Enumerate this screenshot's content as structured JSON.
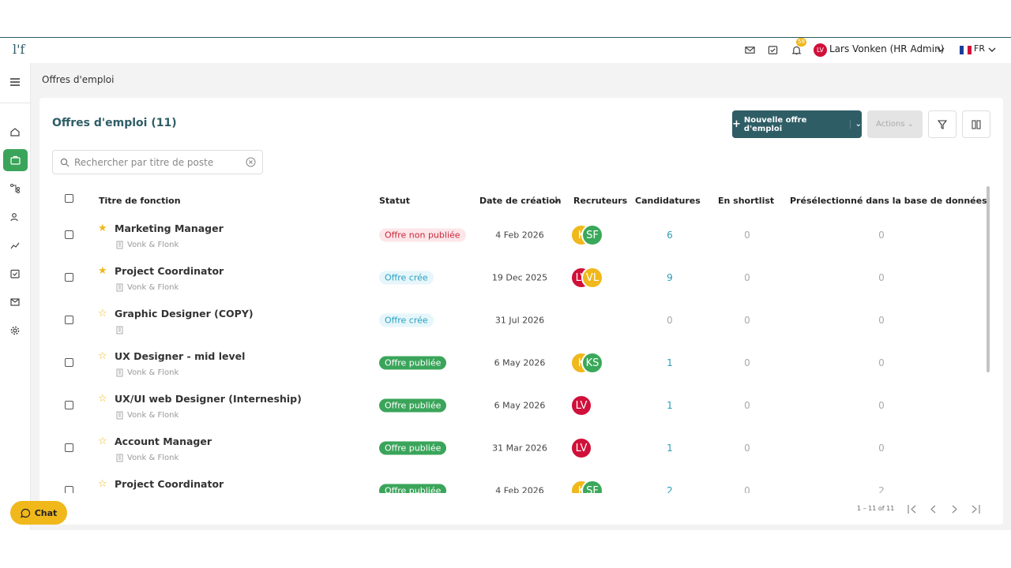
{
  "header": {
    "logo": "l'f",
    "notification_count": "59",
    "user_initials": "LV",
    "user_name": "Lars Vonken (HR Admin)",
    "language": "FR"
  },
  "breadcrumb": "Offres d'emploi",
  "page": {
    "title": "Offres d'emploi (11)",
    "new_button": "Nouvelle offre d'emploi",
    "actions_button": "Actions",
    "search_placeholder": "Rechercher par titre de poste"
  },
  "table": {
    "columns": [
      "Titre de fonction",
      "Statut",
      "Date de création",
      "Recruteurs",
      "Candidatures",
      "En shortlist",
      "Présélectionné dans la base de données"
    ],
    "rows": [
      {
        "title": "Marketing Manager",
        "company": "Vonk & Flonk",
        "starred": true,
        "status": "Offre non publiée",
        "status_bg": "#fde6e9",
        "status_fg": "#c8283a",
        "date": "4 Feb 2026",
        "recruiters": [
          {
            "initials": "K",
            "color": "#f0b81b"
          },
          {
            "initials": "SF",
            "color": "#3aa85a"
          }
        ],
        "candidatures": 6,
        "shortlist": 0,
        "preselected": 0
      },
      {
        "title": "Project Coordinator",
        "company": "Vonk & Flonk",
        "starred": true,
        "status": "Offre crée",
        "status_bg": "#e6f6fb",
        "status_fg": "#2aa0c0",
        "date": "19 Dec 2025",
        "recruiters": [
          {
            "initials": "LV",
            "color": "#d0103a"
          },
          {
            "initials": "VL",
            "color": "#f0b81b"
          }
        ],
        "candidatures": 9,
        "shortlist": 0,
        "preselected": 0
      },
      {
        "title": "Graphic Designer (COPY)",
        "starred": false,
        "status": "Offre crée",
        "status_bg": "#e6f6fb",
        "status_fg": "#2aa0c0",
        "date": "31 Jul 2026",
        "recruiters": [],
        "candidatures": 0,
        "shortlist": 0,
        "preselected": 0
      },
      {
        "title": "UX Designer - mid level",
        "company": "Vonk & Flonk",
        "starred": false,
        "status": "Offre publiée",
        "status_bg": "#3aa55a",
        "status_fg": "#ffffff",
        "date": "6 May 2026",
        "recruiters": [
          {
            "initials": "K",
            "color": "#f0b81b"
          },
          {
            "initials": "KS",
            "color": "#3aa85a"
          }
        ],
        "candidatures": 1,
        "shortlist": 0,
        "preselected": 0
      },
      {
        "title": "UX/UI web Designer (Interneship)",
        "company": "Vonk & Flonk",
        "starred": false,
        "status": "Offre publiée",
        "status_bg": "#3aa55a",
        "status_fg": "#ffffff",
        "date": "6 May 2026",
        "recruiters": [
          {
            "initials": "LV",
            "color": "#d0103a"
          }
        ],
        "candidatures": 1,
        "shortlist": 0,
        "preselected": 0
      },
      {
        "title": "Account Manager",
        "company": "Vonk & Flonk",
        "starred": false,
        "status": "Offre publiée",
        "status_bg": "#3aa55a",
        "status_fg": "#ffffff",
        "date": "31 Mar 2026",
        "recruiters": [
          {
            "initials": "LV",
            "color": "#d0103a"
          }
        ],
        "candidatures": 1,
        "shortlist": 0,
        "preselected": 0
      },
      {
        "title": "Project Coordinator",
        "starred": false,
        "status": "Offre publiée",
        "status_bg": "#3aa55a",
        "status_fg": "#ffffff",
        "date": "4 Feb 2026",
        "recruiters": [
          {
            "initials": "K",
            "color": "#f0b81b"
          },
          {
            "initials": "SF",
            "color": "#3aa85a"
          }
        ],
        "candidatures": 2,
        "shortlist": 0,
        "preselected": 2
      }
    ]
  },
  "pagination": "1 – 11 of 11",
  "chat": "Chat"
}
